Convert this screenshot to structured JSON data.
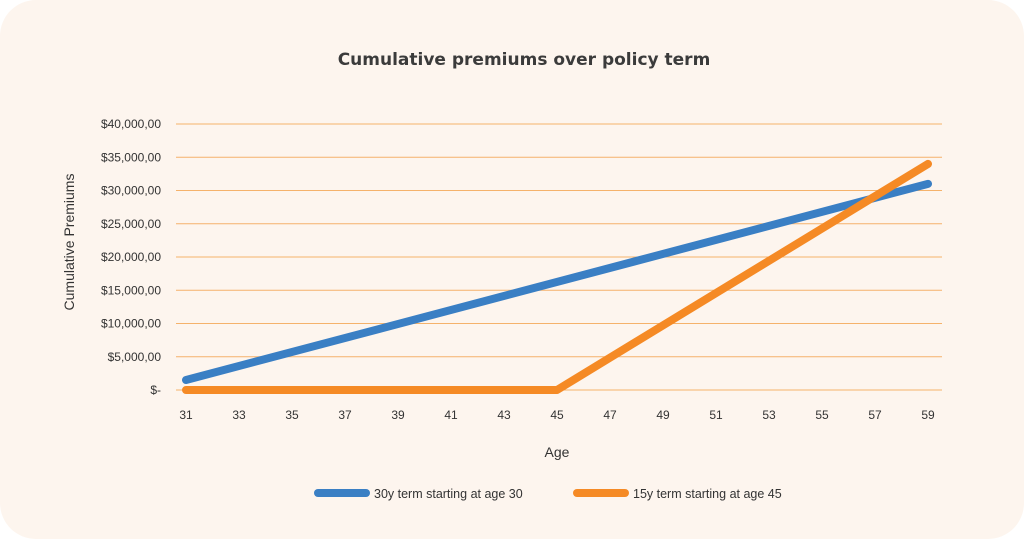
{
  "chart_data": {
    "type": "line",
    "title": "Cumulative premiums over policy term",
    "xlabel": "Age",
    "ylabel": "Cumulative Premiums",
    "x": [
      31,
      33,
      35,
      37,
      39,
      41,
      43,
      45,
      47,
      49,
      51,
      53,
      55,
      57,
      59
    ],
    "xlim": [
      31,
      59
    ],
    "ylim": [
      0,
      40000
    ],
    "yticks": [
      0,
      5000,
      10000,
      15000,
      20000,
      25000,
      30000,
      35000,
      40000
    ],
    "ytick_labels": [
      "$-",
      "$5,000,00",
      "$10,000,00",
      "$15,000,00",
      "$20,000,00",
      "$25,000,00",
      "$30,000,00",
      "$35,000,00",
      "$40,000,00"
    ],
    "grid": true,
    "legend": "bottom",
    "series": [
      {
        "name": "30y term starting at age 30",
        "color": "#3a7fc4",
        "points": [
          [
            31,
            1500
          ],
          [
            59,
            31000
          ]
        ]
      },
      {
        "name": "15y term starting at age 45",
        "color": "#f58a25",
        "points": [
          [
            31,
            0
          ],
          [
            45,
            0
          ],
          [
            59,
            34000
          ]
        ]
      }
    ]
  },
  "colors": {
    "background": "#fdf5ee",
    "grid": "#f5b26b"
  }
}
